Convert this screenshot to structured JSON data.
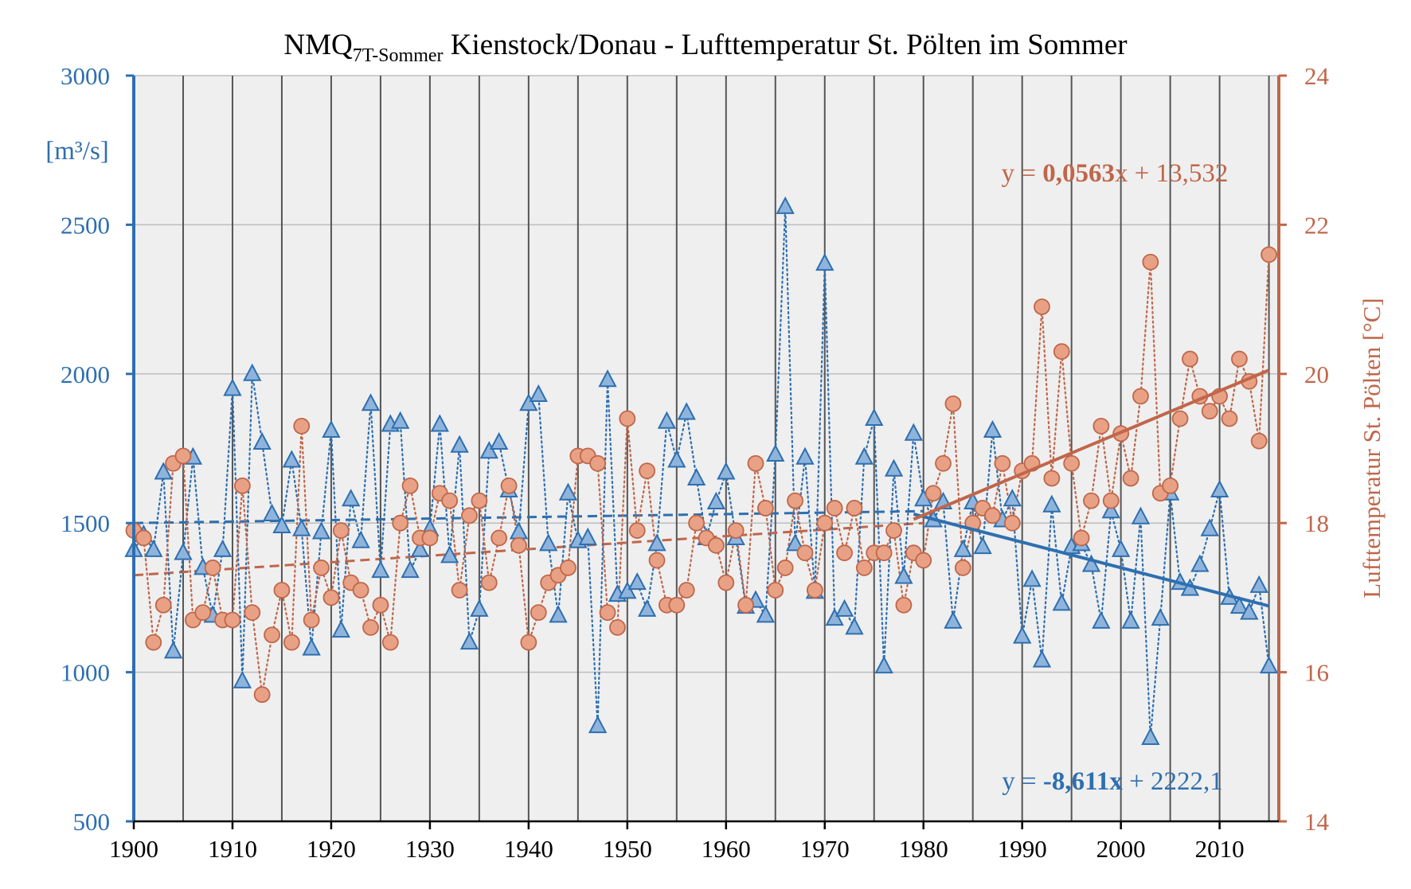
{
  "chart_data": {
    "type": "line",
    "title": {
      "prefix": "NMQ",
      "subscript": "7T-Sommer",
      "rest": " Kienstock/Donau - Lufttemperatur  St. Pölten  im Sommer"
    },
    "x_ticks": [
      "1900",
      "1910",
      "1920",
      "1930",
      "1940",
      "1950",
      "1960",
      "1970",
      "1980",
      "1990",
      "2000",
      "2010"
    ],
    "xlim": [
      1900,
      2016
    ],
    "y_left": {
      "label": "[m³/s]",
      "ticks": [
        "500",
        "1000",
        "1500",
        "2000",
        "2500",
        "3000"
      ],
      "lim": [
        500,
        3000
      ]
    },
    "y_right": {
      "label": "Lufttemperatur  St. Pölten [°C]",
      "ticks": [
        "14",
        "16",
        "18",
        "20",
        "22",
        "24"
      ],
      "lim": [
        14,
        24
      ]
    },
    "grid": true,
    "colors": {
      "flow": "#2e6fb0",
      "flow_fill": "#8fb4dc",
      "temp": "#c0664a",
      "temp_fill": "#e8a184",
      "plot_bg": "#efefef",
      "grid_v": "#555555",
      "grid_h": "#bdbdbd"
    },
    "years": [
      1900,
      1901,
      1902,
      1903,
      1904,
      1905,
      1906,
      1907,
      1908,
      1909,
      1910,
      1911,
      1912,
      1913,
      1914,
      1915,
      1916,
      1917,
      1918,
      1919,
      1920,
      1921,
      1922,
      1923,
      1924,
      1925,
      1926,
      1927,
      1928,
      1929,
      1930,
      1931,
      1932,
      1933,
      1934,
      1935,
      1936,
      1937,
      1938,
      1939,
      1940,
      1941,
      1942,
      1943,
      1944,
      1945,
      1946,
      1947,
      1948,
      1949,
      1950,
      1951,
      1952,
      1953,
      1954,
      1955,
      1956,
      1957,
      1958,
      1959,
      1960,
      1961,
      1962,
      1963,
      1964,
      1965,
      1966,
      1967,
      1968,
      1969,
      1970,
      1971,
      1972,
      1973,
      1974,
      1975,
      1976,
      1977,
      1978,
      1979,
      1980,
      1981,
      1982,
      1983,
      1984,
      1985,
      1986,
      1987,
      1988,
      1989,
      1990,
      1991,
      1992,
      1993,
      1994,
      1995,
      1996,
      1997,
      1998,
      1999,
      2000,
      2001,
      2002,
      2003,
      2004,
      2005,
      2006,
      2007,
      2008,
      2009,
      2010,
      2011,
      2012,
      2013,
      2014,
      2015
    ],
    "series": [
      {
        "axis": "left",
        "marker": "triangle",
        "values": [
          1410,
          1460,
          1410,
          1670,
          1070,
          1400,
          1720,
          1350,
          1190,
          1410,
          1950,
          970,
          2000,
          1770,
          1530,
          1490,
          1710,
          1480,
          1080,
          1470,
          1810,
          1140,
          1580,
          1440,
          1900,
          1340,
          1830,
          1840,
          1340,
          1410,
          1480,
          1830,
          1390,
          1760,
          1100,
          1210,
          1740,
          1770,
          1610,
          1470,
          1900,
          1930,
          1430,
          1190,
          1600,
          1440,
          1450,
          820,
          1980,
          1260,
          1270,
          1300,
          1210,
          1430,
          1840,
          1710,
          1870,
          1650,
          1450,
          1570,
          1670,
          1450,
          1220,
          1240,
          1190,
          1730,
          2560,
          1430,
          1720,
          1270,
          2370,
          1180,
          1210,
          1150,
          1720,
          1850,
          1020,
          1680,
          1320,
          1800,
          1580,
          1510,
          1570,
          1170,
          1410,
          1570,
          1420,
          1810,
          1510,
          1580,
          1120,
          1310,
          1040,
          1560,
          1230,
          1420,
          1430,
          1360,
          1170,
          1540,
          1410,
          1170,
          1520,
          780,
          1180,
          1600,
          1300,
          1280,
          1360,
          1480,
          1610,
          1250,
          1220,
          1200,
          1290,
          1020
        ]
      },
      {
        "axis": "right",
        "marker": "circle",
        "values": [
          17.9,
          17.8,
          16.4,
          16.9,
          18.8,
          18.9,
          16.7,
          16.8,
          17.4,
          16.7,
          16.7,
          18.5,
          16.8,
          15.7,
          16.5,
          17.1,
          16.4,
          19.3,
          16.7,
          17.4,
          17.0,
          17.9,
          17.2,
          17.1,
          16.6,
          16.9,
          16.4,
          18.0,
          18.5,
          17.8,
          17.8,
          18.4,
          18.3,
          17.1,
          18.1,
          18.3,
          17.2,
          17.8,
          18.5,
          17.7,
          16.4,
          16.8,
          17.2,
          17.3,
          17.4,
          18.9,
          18.9,
          18.8,
          16.8,
          16.6,
          19.4,
          17.9,
          18.7,
          17.5,
          16.9,
          16.9,
          17.1,
          18.0,
          17.8,
          17.7,
          17.2,
          17.9,
          16.9,
          18.8,
          18.2,
          17.1,
          17.4,
          18.3,
          17.6,
          17.1,
          18.0,
          18.2,
          17.6,
          18.2,
          17.4,
          17.6,
          17.6,
          17.9,
          16.9,
          17.6,
          17.5,
          18.4,
          18.8,
          19.6,
          17.4,
          18.0,
          18.2,
          18.1,
          18.8,
          18.0,
          18.7,
          18.8,
          20.9,
          18.6,
          20.3,
          18.8,
          17.8,
          18.3,
          19.3,
          18.3,
          19.2,
          18.6,
          19.7,
          21.5,
          18.4,
          18.5,
          19.4,
          20.2,
          19.7,
          19.5,
          19.7,
          19.4,
          20.2,
          19.9,
          19.1,
          21.6
        ]
      }
    ],
    "trendlines": [
      {
        "axis": "left",
        "style": "dashed",
        "from": [
          1900,
          1500
        ],
        "to": [
          1980,
          1540
        ]
      },
      {
        "axis": "right",
        "style": "dashed",
        "from": [
          1900,
          17.3
        ],
        "to": [
          1980,
          18.0
        ]
      },
      {
        "axis": "left",
        "style": "solid",
        "from": [
          1979,
          1530
        ],
        "to": [
          2015,
          1222
        ]
      },
      {
        "axis": "right",
        "style": "solid",
        "from": [
          1979,
          18.05
        ],
        "to": [
          2015,
          20.05
        ]
      }
    ],
    "annotations": {
      "temp_equation": {
        "prefix": "y = ",
        "coef": "0,0563",
        "suffix": "x + 13,532"
      },
      "flow_equation": {
        "prefix": "y = ",
        "coef": "-8,611x",
        "suffix": " + 2222,1"
      }
    }
  }
}
